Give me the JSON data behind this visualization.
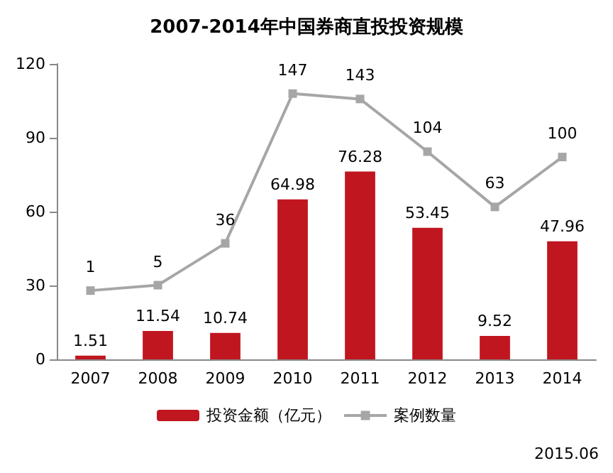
{
  "chart_data": {
    "type": "bar",
    "title": "2007-2014年中国券商直投投资规模",
    "categories": [
      "2007",
      "2008",
      "2009",
      "2010",
      "2011",
      "2012",
      "2013",
      "2014"
    ],
    "series": [
      {
        "name": "投资金额（亿元）",
        "type": "bar",
        "color": "#c0161f",
        "values": [
          1.51,
          11.54,
          10.74,
          64.98,
          76.28,
          53.45,
          9.52,
          47.96
        ]
      },
      {
        "name": "案例数量",
        "type": "line",
        "axis": "y2",
        "color": "#a6a6a6",
        "marker": "square",
        "values": [
          1,
          5,
          36,
          147,
          143,
          104,
          63,
          100
        ]
      }
    ],
    "ylim": [
      0,
      120
    ],
    "yticks": [
      0,
      30,
      60,
      90,
      120
    ],
    "y2lim": [
      -50,
      169
    ],
    "tick_labels": "y",
    "data_labels": true,
    "grid": false,
    "legend": "bottom",
    "annotations": [
      "2015.06"
    ]
  }
}
